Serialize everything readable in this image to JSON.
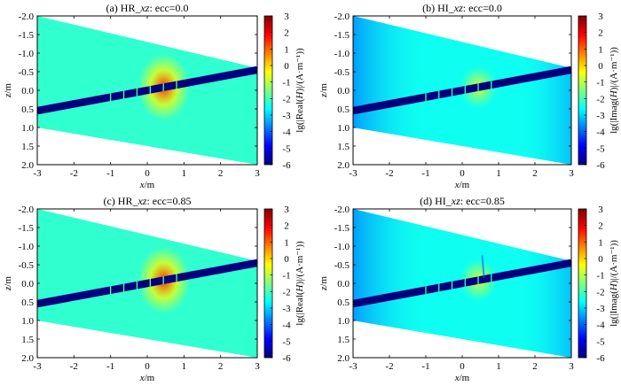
{
  "figure": {
    "colorbar": {
      "stops": [
        "#00007f",
        "#0000ff",
        "#007fff",
        "#00ffff",
        "#7fff7f",
        "#ffff00",
        "#ff7f00",
        "#ff0000",
        "#7f0000"
      ],
      "range": [
        -6,
        3
      ],
      "ticks": [
        "3",
        "2",
        "1",
        "0",
        "-1",
        "-2",
        "-3",
        "-4",
        "-5",
        "-6"
      ],
      "tick_values": [
        3,
        2,
        1,
        0,
        -1,
        -2,
        -3,
        -4,
        -5,
        -6
      ]
    }
  },
  "chart_data": [
    {
      "type": "heatmap",
      "panel_id": "a",
      "title_prefix": "(a) HR_",
      "title_italic": "xz",
      "title_suffix": ": ecc=0.0",
      "xlabel_italic": "x",
      "xlabel_suffix": "/m",
      "ylabel_italic": "z",
      "ylabel_suffix": "/m",
      "xlim": [
        -3,
        3
      ],
      "ylim": [
        -2,
        2
      ],
      "x_ticks": [
        "-3",
        "-2",
        "-1",
        "0",
        "1",
        "2",
        "3"
      ],
      "x_tick_values": [
        -3,
        -2,
        -1,
        0,
        1,
        2,
        3
      ],
      "y_ticks": [
        "-2.0",
        "-1.5",
        "-1.0",
        "-0.5",
        "0.0",
        "0.5",
        "1.0",
        "1.5",
        "2.0"
      ],
      "y_tick_values": [
        -2,
        -1.5,
        -1,
        -0.5,
        0,
        0.5,
        1,
        1.5,
        2
      ],
      "cbar_label_prefix": "lg(|Real(",
      "cbar_label_italic": "H",
      "cbar_label_suffix": ")|/(A·m⁻¹))",
      "field_kind": "real",
      "ecc": 0.0,
      "domain_band_z_at_x_min": [
        -2.0,
        1.0
      ],
      "domain_band_z_at_x_max": [
        -0.6,
        2.0
      ],
      "borehole_z_at_x_min": 0.55,
      "borehole_z_at_x_max": -0.55,
      "borehole_value": -6,
      "source_center_x": 0.45,
      "peak_value": 1.5,
      "background_value": -2.2
    },
    {
      "type": "heatmap",
      "panel_id": "b",
      "title_prefix": "(b) HI_",
      "title_italic": "xz",
      "title_suffix": ": ecc=0.0",
      "xlabel_italic": "x",
      "xlabel_suffix": "/m",
      "ylabel_italic": "z",
      "ylabel_suffix": "/m",
      "xlim": [
        -3,
        3
      ],
      "ylim": [
        -2,
        2
      ],
      "x_ticks": [
        "-3",
        "-2",
        "-1",
        "0",
        "1",
        "2",
        "3"
      ],
      "x_tick_values": [
        -3,
        -2,
        -1,
        0,
        1,
        2,
        3
      ],
      "y_ticks": [
        "-2.0",
        "-1.5",
        "-1.0",
        "-0.5",
        "0.0",
        "0.5",
        "1.0",
        "1.5",
        "2.0"
      ],
      "y_tick_values": [
        -2,
        -1.5,
        -1,
        -0.5,
        0,
        0.5,
        1,
        1.5,
        2
      ],
      "cbar_label_prefix": "lg(|Imag(",
      "cbar_label_italic": "H",
      "cbar_label_suffix": ")|/(A·m⁻¹))",
      "field_kind": "imag",
      "ecc": 0.0,
      "domain_band_z_at_x_min": [
        -2.0,
        1.0
      ],
      "domain_band_z_at_x_max": [
        -0.6,
        2.0
      ],
      "borehole_z_at_x_min": 0.55,
      "borehole_z_at_x_max": -0.55,
      "borehole_value": -6,
      "source_center_x": 0.45,
      "peak_value": -0.5,
      "background_value": -2.5
    },
    {
      "type": "heatmap",
      "panel_id": "c",
      "title_prefix": "(c) HR_",
      "title_italic": "xz",
      "title_suffix": ": ecc=0.85",
      "xlabel_italic": "x",
      "xlabel_suffix": "/m",
      "ylabel_italic": "z",
      "ylabel_suffix": "/m",
      "xlim": [
        -3,
        3
      ],
      "ylim": [
        -2,
        2
      ],
      "x_ticks": [
        "-3",
        "-2",
        "-1",
        "0",
        "1",
        "2",
        "3"
      ],
      "x_tick_values": [
        -3,
        -2,
        -1,
        0,
        1,
        2,
        3
      ],
      "y_ticks": [
        "-2.0",
        "-1.5",
        "-1.0",
        "-0.5",
        "0.0",
        "0.5",
        "1.0",
        "1.5",
        "2.0"
      ],
      "y_tick_values": [
        -2,
        -1.5,
        -1,
        -0.5,
        0,
        0.5,
        1,
        1.5,
        2
      ],
      "cbar_label_prefix": "lg(|Real(",
      "cbar_label_italic": "H",
      "cbar_label_suffix": ")|/(A·m⁻¹))",
      "field_kind": "real",
      "ecc": 0.85,
      "domain_band_z_at_x_min": [
        -2.0,
        1.0
      ],
      "domain_band_z_at_x_max": [
        -0.6,
        2.0
      ],
      "borehole_z_at_x_min": 0.55,
      "borehole_z_at_x_max": -0.55,
      "borehole_value": -6,
      "source_center_x": 0.45,
      "peak_value": 1.5,
      "background_value": -2.2
    },
    {
      "type": "heatmap",
      "panel_id": "d",
      "title_prefix": "(d) HI_",
      "title_italic": "xz",
      "title_suffix": ": ecc=0.85",
      "xlabel_italic": "x",
      "xlabel_suffix": "/m",
      "ylabel_italic": "z",
      "ylabel_suffix": "/m",
      "xlim": [
        -3,
        3
      ],
      "ylim": [
        -2,
        2
      ],
      "x_ticks": [
        "-3",
        "-2",
        "-1",
        "0",
        "1",
        "2",
        "3"
      ],
      "x_tick_values": [
        -3,
        -2,
        -1,
        0,
        1,
        2,
        3
      ],
      "y_ticks": [
        "-2.0",
        "-1.5",
        "-1.0",
        "-0.5",
        "0.0",
        "0.5",
        "1.0",
        "1.5",
        "2.0"
      ],
      "y_tick_values": [
        -2,
        -1.5,
        -1,
        -0.5,
        0,
        0.5,
        1,
        1.5,
        2
      ],
      "cbar_label_prefix": "lg(|Imag(",
      "cbar_label_italic": "H",
      "cbar_label_suffix": ")|/(A·m⁻¹))",
      "field_kind": "imag",
      "ecc": 0.85,
      "domain_band_z_at_x_min": [
        -2.0,
        1.0
      ],
      "domain_band_z_at_x_max": [
        -0.6,
        2.0
      ],
      "borehole_z_at_x_min": 0.55,
      "borehole_z_at_x_max": -0.55,
      "borehole_value": -6,
      "source_center_x": 0.45,
      "peak_value": -0.5,
      "background_value": -2.5
    }
  ]
}
